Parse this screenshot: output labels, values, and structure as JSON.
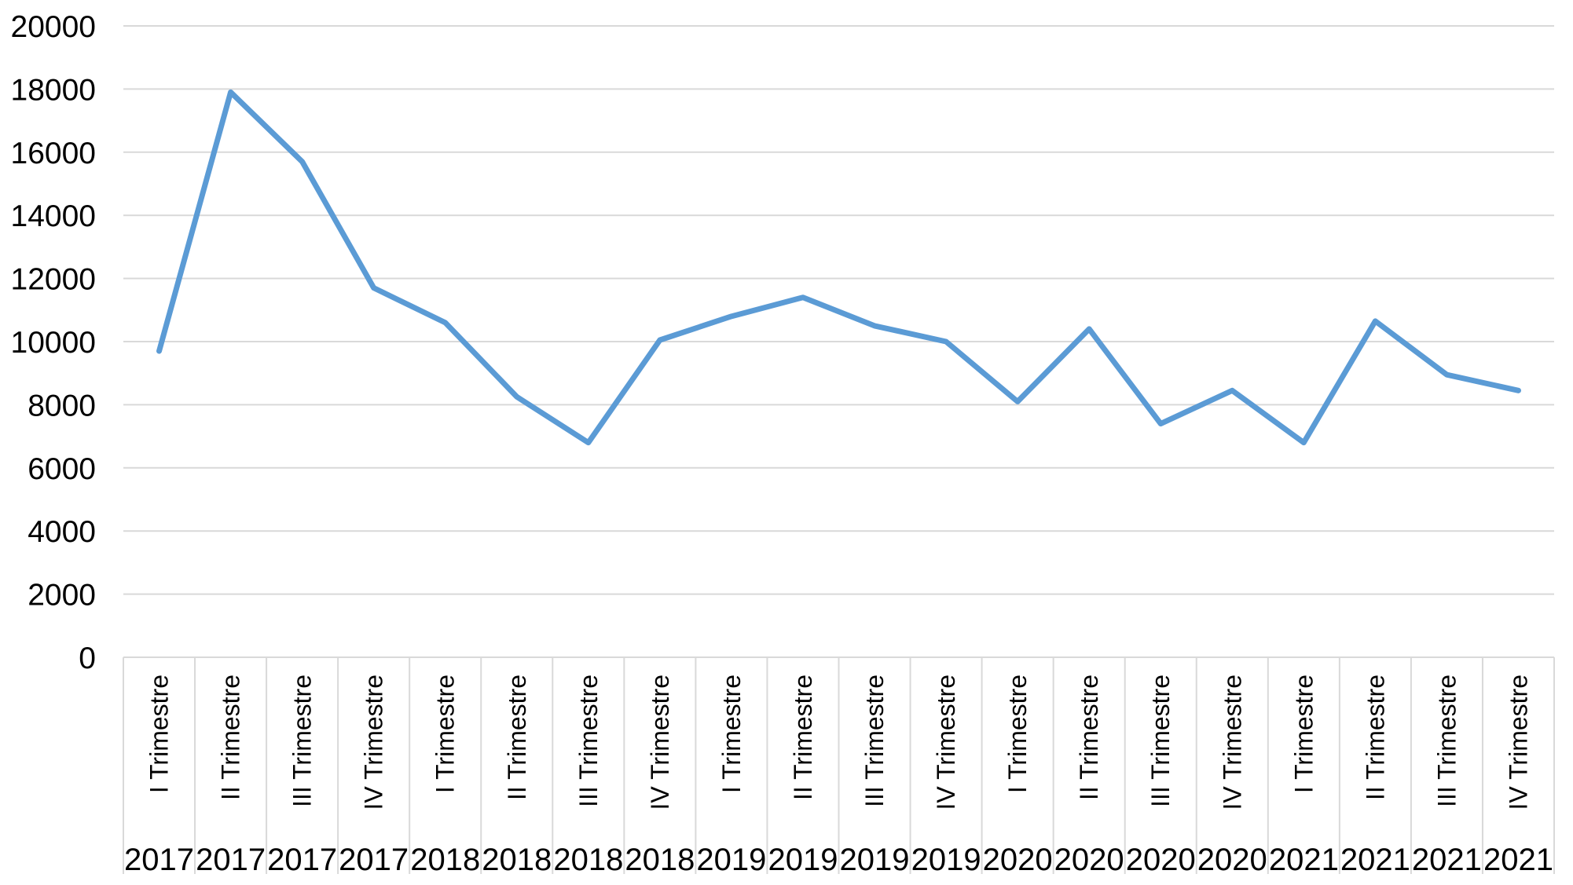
{
  "chart_data": {
    "type": "line",
    "title": "",
    "xlabel": "",
    "ylabel": "",
    "legend_position": "none",
    "grid": "horizontal-on",
    "ylim": [
      0,
      20000
    ],
    "yticks": [
      0,
      2000,
      4000,
      6000,
      8000,
      10000,
      12000,
      14000,
      16000,
      18000,
      20000
    ],
    "ytick_labels": [
      "0",
      "2000",
      "4000",
      "6000",
      "8000",
      "10000",
      "12000",
      "14000",
      "16000",
      "18000",
      "20000"
    ],
    "categories": [
      "I Trimestre",
      "II Trimestre",
      "III Trimestre",
      "IV Trimestre",
      "I Trimestre",
      "II Trimestre",
      "III Trimestre",
      "IV Trimestre",
      "I Trimestre",
      "II Trimestre",
      "III Trimestre",
      "IV Trimestre",
      "I Trimestre",
      "II Trimestre",
      "III Trimestre",
      "IV Trimestre",
      "I Trimestre",
      "II Trimestre",
      "III Trimestre",
      "IV Trimestre"
    ],
    "years": [
      "2017",
      "2017",
      "2017",
      "2017",
      "2018",
      "2018",
      "2018",
      "2018",
      "2019",
      "2019",
      "2019",
      "2019",
      "2020",
      "2020",
      "2020",
      "2020",
      "2021",
      "2021",
      "2021",
      "2021"
    ],
    "values": [
      9700,
      17900,
      15700,
      11700,
      10600,
      8250,
      6800,
      10050,
      10800,
      11400,
      10500,
      10000,
      8100,
      10400,
      7400,
      8450,
      6800,
      10650,
      8950,
      8450
    ],
    "line_color": "#5B9BD5",
    "gridline_color": "#D9D9D9",
    "separator_color": "#D9D9D9",
    "text_color": "#000000",
    "background_color": "#FFFFFF"
  }
}
